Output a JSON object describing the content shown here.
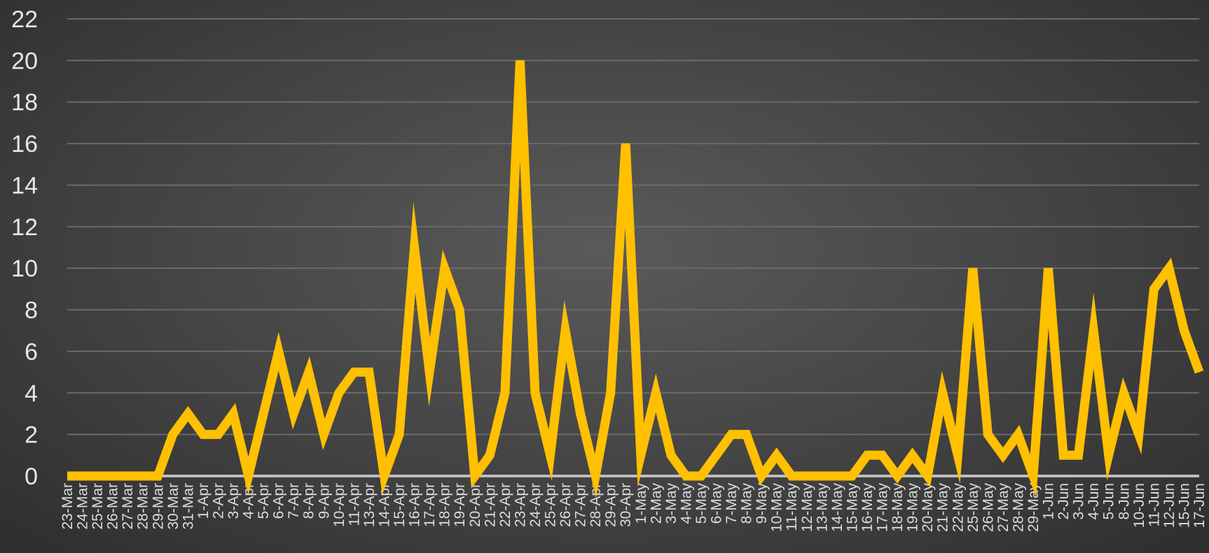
{
  "chart_data": {
    "type": "line",
    "title": "",
    "xlabel": "",
    "ylabel": "",
    "ylim": [
      0,
      22
    ],
    "yticks": [
      0,
      2,
      4,
      6,
      8,
      10,
      12,
      14,
      16,
      18,
      20,
      22
    ],
    "grid": true,
    "legend": "none",
    "line_color": "#FFC000",
    "categories": [
      "23-Mar",
      "24-Mar",
      "25-Mar",
      "26-Mar",
      "27-Mar",
      "28-Mar",
      "29-Mar",
      "30-Mar",
      "31-Mar",
      "1-Apr",
      "2-Apr",
      "3-Apr",
      "4-Apr",
      "5-Apr",
      "6-Apr",
      "7-Apr",
      "8-Apr",
      "9-Apr",
      "10-Apr",
      "11-Apr",
      "13-Apr",
      "14-Apr",
      "15-Apr",
      "16-Apr",
      "17-Apr",
      "18-Apr",
      "19-Apr",
      "20-Apr",
      "21-Apr",
      "22-Apr",
      "23-Apr",
      "24-Apr",
      "25-Apr",
      "26-Apr",
      "27-Apr",
      "28-Apr",
      "29-Apr",
      "30-Apr",
      "1-May",
      "2-May",
      "3-May",
      "4-May",
      "5-May",
      "6-May",
      "7-May",
      "8-May",
      "9-May",
      "10-May",
      "11-May",
      "12-May",
      "13-May",
      "14-May",
      "15-May",
      "16-May",
      "17-May",
      "18-May",
      "19-May",
      "20-May",
      "21-May",
      "22-May",
      "25-May",
      "26-May",
      "27-May",
      "28-May",
      "29-May",
      "1-Jun",
      "2-Jun",
      "3-Jun",
      "4-Jun",
      "5-Jun",
      "8-Jun",
      "10-Jun",
      "11-Jun",
      "12-Jun",
      "15-Jun",
      "17-Jun"
    ],
    "series": [
      {
        "values": [
          0,
          0,
          0,
          0,
          0,
          0,
          0,
          2,
          3,
          2,
          2,
          3,
          0,
          3,
          6,
          3,
          5,
          2,
          4,
          5,
          5,
          0,
          2,
          11,
          5,
          10,
          8,
          0,
          1,
          4,
          20,
          4,
          1,
          7,
          3,
          0,
          4,
          16,
          1,
          4,
          1,
          0,
          0,
          1,
          2,
          2,
          0,
          1,
          0,
          0,
          0,
          0,
          0,
          1,
          1,
          0,
          1,
          0,
          4,
          1,
          10,
          2,
          1,
          2,
          0,
          10,
          1,
          1,
          7,
          1,
          4,
          2,
          9,
          10,
          7,
          5
        ]
      }
    ]
  }
}
